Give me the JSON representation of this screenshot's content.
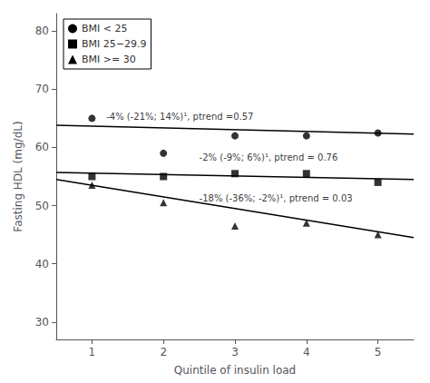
{
  "chart_data": {
    "type": "scatter",
    "xlabel": "Quintile of insulin load",
    "ylabel": "Fasting HDL (mg/dL)",
    "xlim": [
      0.5,
      5.5
    ],
    "ylim": [
      27,
      83
    ],
    "xticks": [
      1,
      2,
      3,
      4,
      5
    ],
    "yticks": [
      30,
      40,
      50,
      60,
      70,
      80
    ],
    "grid": false,
    "legend": "upper left",
    "color": "#000000",
    "series": [
      {
        "name": "BMI < 25",
        "marker": "circle",
        "x": [
          1,
          2,
          3,
          4,
          5
        ],
        "values": [
          65.0,
          59.0,
          62.0,
          62.0,
          62.5
        ],
        "trend_x": [
          0.5,
          5.5
        ],
        "trend_y": [
          63.8,
          62.3
        ],
        "annotation": {
          "text": "-4% (-21%; 14%)¹, ptrend =0.57",
          "x": 1.2,
          "y": 64.5
        }
      },
      {
        "name": "BMI 25−29.9",
        "marker": "square",
        "x": [
          1,
          2,
          3,
          4,
          5
        ],
        "values": [
          55.0,
          55.0,
          55.5,
          55.5,
          54.0
        ],
        "trend_x": [
          0.5,
          5.5
        ],
        "trend_y": [
          55.7,
          54.5
        ],
        "annotation": {
          "text": "-2% (-9%; 6%)¹, ptrend = 0.76",
          "x": 2.5,
          "y": 57.5
        }
      },
      {
        "name": "BMI >= 30",
        "marker": "triangle",
        "x": [
          1,
          2,
          3,
          4,
          5
        ],
        "values": [
          53.5,
          50.5,
          46.5,
          47.0,
          45.0
        ],
        "trend_x": [
          0.5,
          5.5
        ],
        "trend_y": [
          54.5,
          44.5
        ],
        "annotation": {
          "text": "-18% (-36%; -2%)¹, ptrend = 0.03",
          "x": 2.5,
          "y": 50.5
        }
      }
    ]
  }
}
